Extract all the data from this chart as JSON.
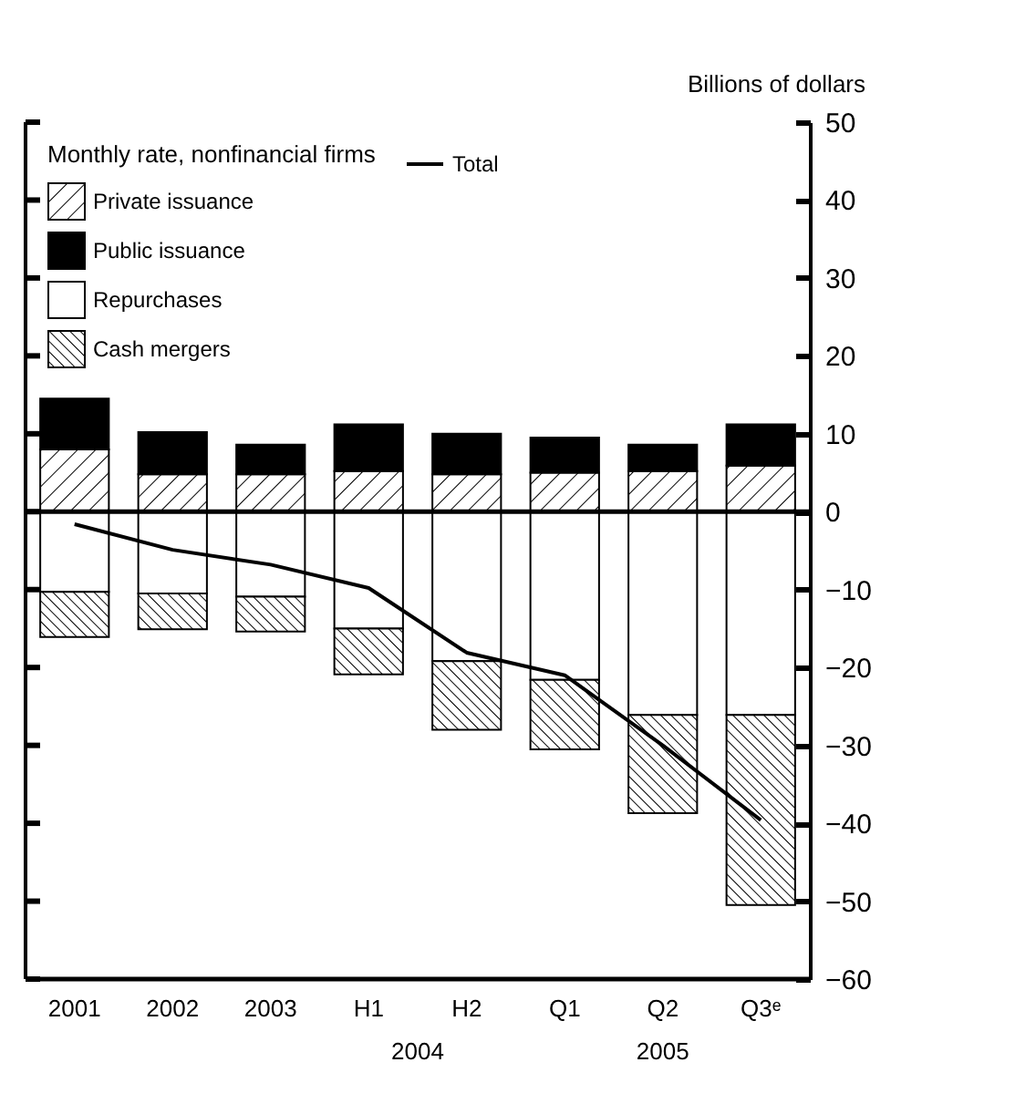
{
  "chart_data": {
    "type": "bar",
    "stacked": true,
    "legend": "top left",
    "legend_title": "Monthly rate, nonfinancial firms",
    "ylabel": "Billions of dollars",
    "categories": [
      "2001",
      "2002",
      "2003",
      "H1",
      "H2",
      "Q1",
      "Q2",
      "Q3ᵉ"
    ],
    "series": [
      {
        "name": "Private issuance",
        "color": "#ffffff",
        "values": [
          8.0,
          4.8,
          4.8,
          5.2,
          4.8,
          5.0,
          5.2,
          5.9
        ]
      },
      {
        "name": "Public issuance",
        "color": "#000000",
        "values": [
          6.5,
          5.4,
          3.8,
          6.0,
          5.2,
          4.5,
          3.4,
          5.3
        ]
      },
      {
        "name": "Repurchases",
        "color": "#ffffff",
        "values": [
          -10.3,
          -10.5,
          -10.9,
          -15.0,
          -19.2,
          -21.6,
          -26.1,
          -26.1
        ]
      },
      {
        "name": "Cash mergers",
        "color": "#ffffff",
        "values": [
          -5.8,
          -4.6,
          -4.5,
          -5.9,
          -8.8,
          -8.9,
          -12.6,
          -24.4
        ]
      },
      {
        "name": "Total",
        "type": "line",
        "color": "#000000",
        "values": [
          -1.6,
          -4.9,
          -6.8,
          -9.8,
          -18.1,
          -21.0,
          -30.0,
          -39.6
        ]
      }
    ],
    "ylim": [
      -60,
      50
    ],
    "yticks": [
      -60,
      -50,
      -40,
      -30,
      -20,
      -10,
      0,
      10,
      20,
      30,
      40,
      50
    ],
    "annotations": [
      "2004",
      "2005"
    ]
  }
}
